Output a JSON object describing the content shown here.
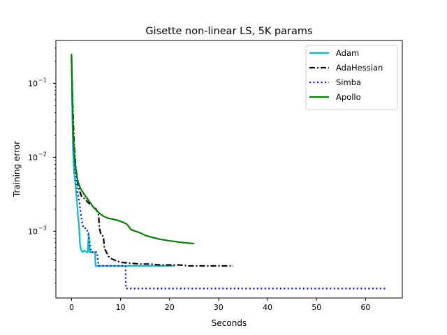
{
  "chart_data": {
    "type": "line",
    "title": "Gisette non-linear LS, 5K params",
    "xlabel": "Seconds",
    "ylabel": "Training error",
    "xlim": [
      -3.2,
      67.5
    ],
    "xticks": [
      0,
      10,
      20,
      30,
      40,
      50,
      60
    ],
    "yscale": "log",
    "ylim": [
      0.000125,
      0.38
    ],
    "yticks": [
      {
        "value": 0.001,
        "base": "10",
        "exp": "−3"
      },
      {
        "value": 0.01,
        "base": "10",
        "exp": "−2"
      },
      {
        "value": 0.1,
        "base": "10",
        "exp": "−1"
      }
    ],
    "grid": false,
    "legend_position": "top-right",
    "series": [
      {
        "name": "Adam",
        "color": "#00bfbf",
        "dash": "solid",
        "points": [
          [
            0,
            0.25
          ],
          [
            0.12,
            0.05
          ],
          [
            0.3,
            0.012
          ],
          [
            0.5,
            0.0065
          ],
          [
            0.8,
            0.0042
          ],
          [
            1.1,
            0.0025
          ],
          [
            1.3,
            0.0016
          ],
          [
            1.5,
            0.00125
          ],
          [
            1.7,
            0.00068
          ],
          [
            1.9,
            0.00057
          ],
          [
            2.2,
            0.00052
          ],
          [
            2.6,
            0.00055
          ],
          [
            3.0,
            0.00052
          ],
          [
            3.3,
            0.00052
          ],
          [
            3.5,
            0.00095
          ],
          [
            3.7,
            0.00052
          ],
          [
            4.0,
            0.00052
          ],
          [
            4.5,
            0.00052
          ],
          [
            4.8,
            0.00052
          ],
          [
            4.9,
            0.00034
          ],
          [
            6,
            0.00034
          ],
          [
            8,
            0.00034
          ],
          [
            10,
            0.00034
          ],
          [
            12,
            0.00034
          ],
          [
            14,
            0.00034
          ],
          [
            16,
            0.00034
          ],
          [
            18,
            0.00034
          ],
          [
            20,
            0.00034
          ],
          [
            21,
            0.00034
          ]
        ]
      },
      {
        "name": "AdaHessian",
        "color": "#000000",
        "dash": "dashdot",
        "points": [
          [
            0,
            0.22
          ],
          [
            0.2,
            0.06
          ],
          [
            0.5,
            0.016
          ],
          [
            0.8,
            0.008
          ],
          [
            1.2,
            0.0048
          ],
          [
            1.6,
            0.0036
          ],
          [
            2,
            0.003
          ],
          [
            2.5,
            0.0028
          ],
          [
            3,
            0.0026
          ],
          [
            3.5,
            0.0024
          ],
          [
            4,
            0.0023
          ],
          [
            4.5,
            0.0021
          ],
          [
            5,
            0.002
          ],
          [
            5.5,
            0.0017
          ],
          [
            5.7,
            0.0011
          ],
          [
            6,
            0.0009
          ],
          [
            6.5,
            0.00085
          ],
          [
            6.7,
            0.00058
          ],
          [
            7,
            0.00054
          ],
          [
            7.5,
            0.00046
          ],
          [
            8,
            0.00043
          ],
          [
            9,
            0.0004
          ],
          [
            10,
            0.00038
          ],
          [
            12,
            0.00037
          ],
          [
            14,
            0.00036
          ],
          [
            16,
            0.00036
          ],
          [
            18,
            0.00035
          ],
          [
            20,
            0.00035
          ],
          [
            22,
            0.00035
          ],
          [
            24,
            0.00034
          ],
          [
            26,
            0.00034
          ],
          [
            28,
            0.00034
          ],
          [
            30,
            0.00034
          ],
          [
            32,
            0.00034
          ],
          [
            33,
            0.00034
          ]
        ]
      },
      {
        "name": "Simba",
        "color": "#0000ff",
        "dash": "dotted",
        "points": [
          [
            0,
            0.2
          ],
          [
            0.2,
            0.05
          ],
          [
            0.4,
            0.015
          ],
          [
            0.7,
            0.007
          ],
          [
            1,
            0.0045
          ],
          [
            1.3,
            0.0032
          ],
          [
            1.6,
            0.0025
          ],
          [
            1.8,
            0.0019
          ],
          [
            2.1,
            0.0014
          ],
          [
            2.4,
            0.0011
          ],
          [
            2.8,
            0.0011
          ],
          [
            3.0,
            0.0011
          ],
          [
            3.3,
            0.00098
          ],
          [
            3.6,
            0.0008
          ],
          [
            4.0,
            0.00052
          ],
          [
            4.6,
            0.00052
          ],
          [
            4.8,
            0.00052
          ],
          [
            5.2,
            0.00052
          ],
          [
            5.5,
            0.00034
          ],
          [
            6,
            0.00034
          ],
          [
            8,
            0.00034
          ],
          [
            10,
            0.00034
          ],
          [
            11,
            0.00034
          ],
          [
            11.1,
            0.000168
          ],
          [
            15,
            0.000168
          ],
          [
            20,
            0.000168
          ],
          [
            25,
            0.000168
          ],
          [
            30,
            0.000168
          ],
          [
            35,
            0.000168
          ],
          [
            40,
            0.000168
          ],
          [
            45,
            0.000168
          ],
          [
            50,
            0.000168
          ],
          [
            55,
            0.000168
          ],
          [
            60,
            0.000168
          ],
          [
            64.2,
            0.000168
          ]
        ]
      },
      {
        "name": "Apollo",
        "color": "#008000",
        "dash": "solid",
        "points": [
          [
            0,
            0.25
          ],
          [
            0.15,
            0.07
          ],
          [
            0.35,
            0.02
          ],
          [
            0.6,
            0.01
          ],
          [
            0.9,
            0.0065
          ],
          [
            1.3,
            0.0047
          ],
          [
            1.8,
            0.0038
          ],
          [
            2.5,
            0.0032
          ],
          [
            3.5,
            0.0026
          ],
          [
            4.5,
            0.0021
          ],
          [
            5.5,
            0.0018
          ],
          [
            6.5,
            0.0016
          ],
          [
            7.5,
            0.0015
          ],
          [
            8.5,
            0.00145
          ],
          [
            9.5,
            0.0014
          ],
          [
            10.5,
            0.00132
          ],
          [
            11.2,
            0.00126
          ],
          [
            11.5,
            0.0012
          ],
          [
            11.8,
            0.00112
          ],
          [
            12.2,
            0.00105
          ],
          [
            13,
            0.001
          ],
          [
            14,
            0.00095
          ],
          [
            15,
            0.00088
          ],
          [
            16,
            0.00084
          ],
          [
            17,
            0.00081
          ],
          [
            18,
            0.00078
          ],
          [
            19,
            0.00076
          ],
          [
            20,
            0.00074
          ],
          [
            21,
            0.00073
          ],
          [
            22,
            0.00071
          ],
          [
            23,
            0.0007
          ],
          [
            24,
            0.00069
          ],
          [
            25,
            0.00068
          ]
        ]
      }
    ]
  }
}
